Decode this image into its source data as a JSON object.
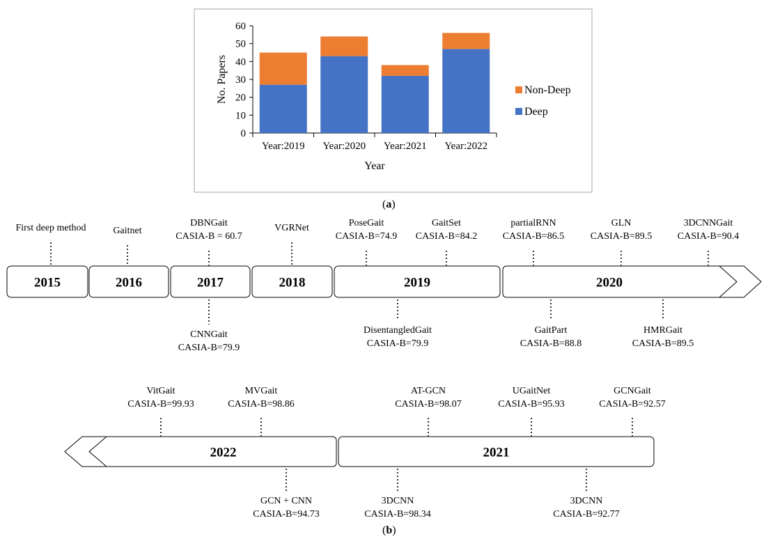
{
  "chart_data": {
    "type": "bar",
    "stacked": true,
    "categories": [
      "Year:2019",
      "Year:2020",
      "Year:2021",
      "Year:2022"
    ],
    "series": [
      {
        "name": "Deep",
        "values": [
          27,
          43,
          32,
          47
        ],
        "color": "#4472C4"
      },
      {
        "name": "Non-Deep",
        "values": [
          18,
          11,
          6,
          9
        ],
        "color": "#ED7D31"
      }
    ],
    "xlabel": "Year",
    "ylabel": "No. Papers",
    "ylim": [
      0,
      60
    ],
    "yticks": [
      0,
      10,
      20,
      30,
      40,
      50,
      60
    ],
    "grid": false,
    "legend_position": "right"
  },
  "captions": {
    "a": "a",
    "b": "b"
  },
  "timeline_top": {
    "years": [
      {
        "label": "2015",
        "arrow": "none"
      },
      {
        "label": "2016",
        "arrow": "none"
      },
      {
        "label": "2017",
        "arrow": "none"
      },
      {
        "label": "2018",
        "arrow": "none"
      },
      {
        "label": "2019",
        "arrow": "none"
      },
      {
        "label": "2020",
        "arrow": "right"
      }
    ],
    "above": [
      {
        "name": "First deep method",
        "acc": ""
      },
      {
        "name": "Gaitnet",
        "acc": ""
      },
      {
        "name": "DBNGait",
        "acc": "CASIA-B = 60.7"
      },
      {
        "name": "VGRNet",
        "acc": ""
      },
      {
        "name": "PoseGait",
        "acc": "CASIA-B=74.9"
      },
      {
        "name": "GaitSet",
        "acc": "CASIA-B=84.2"
      },
      {
        "name": "partialRNN",
        "acc": "CASIA-B=86.5"
      },
      {
        "name": "GLN",
        "acc": "CASIA-B=89.5"
      },
      {
        "name": "3DCNNGait",
        "acc": "CASIA-B=90.4"
      }
    ],
    "below": [
      {
        "name": "CNNGait",
        "acc": "CASIA-B=79.9"
      },
      {
        "name": "DisentangledGait",
        "acc": "CASIA-B=79.9"
      },
      {
        "name": "GaitPart",
        "acc": "CASIA-B=88.8"
      },
      {
        "name": "HMRGait",
        "acc": "CASIA-B=89.5"
      }
    ]
  },
  "timeline_bottom": {
    "years": [
      {
        "label": "2022",
        "arrow": "left"
      },
      {
        "label": "2021",
        "arrow": "none"
      }
    ],
    "above": [
      {
        "name": "VitGait",
        "acc": "CASIA-B=99.93"
      },
      {
        "name": "MVGait",
        "acc": "CASIA-B=98.86"
      },
      {
        "name": "AT-GCN",
        "acc": "CASIA-B=98.07"
      },
      {
        "name": "UGaitNet",
        "acc": "CASIA-B=95.93"
      },
      {
        "name": "GCNGait",
        "acc": "CASIA-B=92.57"
      }
    ],
    "below": [
      {
        "name": "GCN + CNN",
        "acc": "CASIA-B=94.73"
      },
      {
        "name": "3DCNN",
        "acc": "CASIA-B=98.34"
      },
      {
        "name": "3DCNN",
        "acc": "CASIA-B=92.77"
      }
    ]
  }
}
